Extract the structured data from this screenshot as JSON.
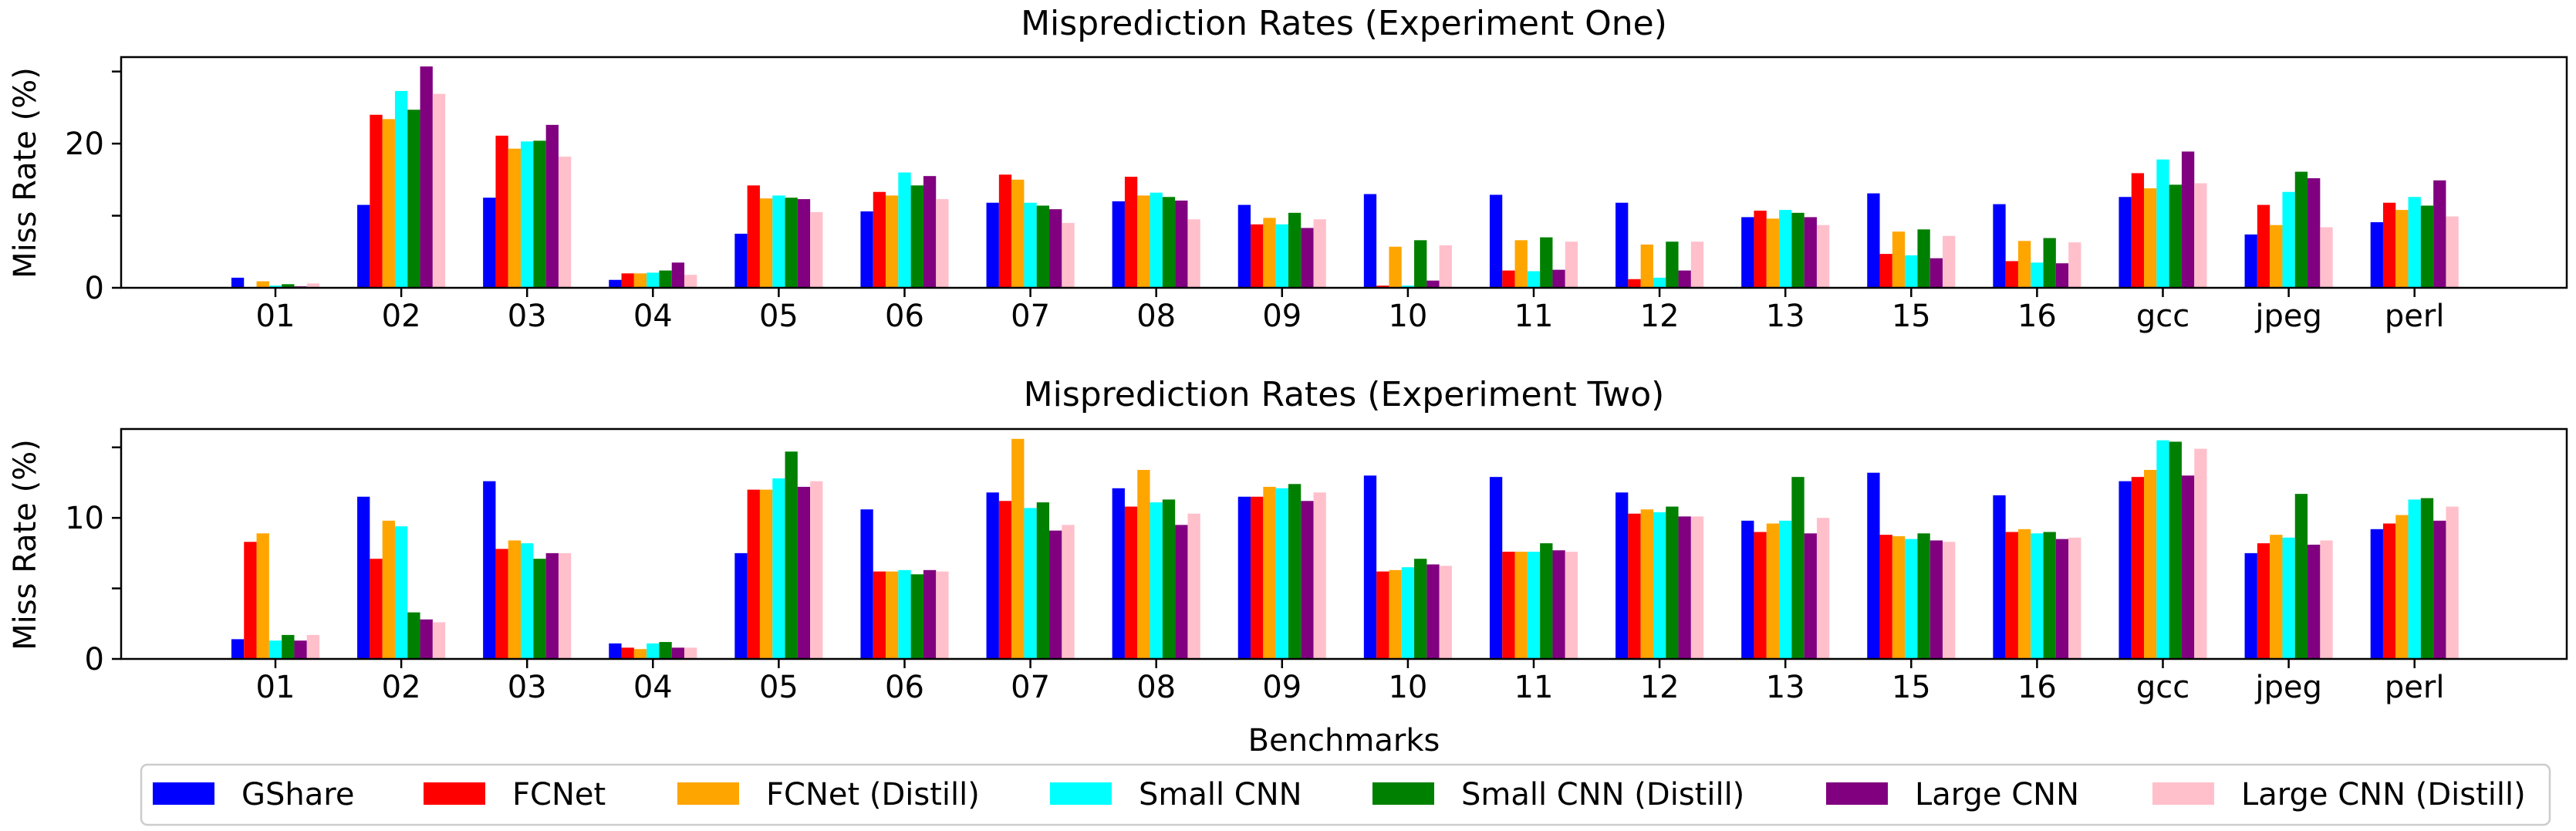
{
  "chart_data": [
    {
      "type": "bar",
      "title": "Misprediction Rates (Experiment One)",
      "xlabel": "",
      "ylabel": "Miss Rate (%)",
      "ylim": [
        0,
        32
      ],
      "yticks": [
        0,
        10,
        20,
        30
      ],
      "ytick_labels": [
        "0",
        "",
        "20",
        ""
      ],
      "categories": [
        "01",
        "02",
        "03",
        "04",
        "05",
        "06",
        "07",
        "08",
        "09",
        "10",
        "11",
        "12",
        "13",
        "15",
        "16",
        "gcc",
        "jpeg",
        "perl"
      ],
      "series": [
        {
          "name": "GShare",
          "color": "#0000ff",
          "values": [
            1.4,
            11.5,
            12.5,
            1.1,
            7.5,
            10.6,
            11.8,
            12.0,
            11.5,
            13.0,
            12.9,
            11.8,
            9.8,
            13.1,
            11.6,
            12.6,
            7.4,
            9.1
          ]
        },
        {
          "name": "FCNet",
          "color": "#ff0000",
          "values": [
            0,
            24.0,
            21.1,
            2.0,
            14.2,
            13.3,
            15.7,
            15.4,
            8.8,
            0.3,
            2.4,
            1.2,
            10.7,
            4.7,
            3.7,
            15.9,
            11.5,
            11.8
          ]
        },
        {
          "name": "FCNet (Distill)",
          "color": "#ffa500",
          "values": [
            0.9,
            23.4,
            19.3,
            2.0,
            12.4,
            12.8,
            15.0,
            12.8,
            9.7,
            5.7,
            6.6,
            6.0,
            9.6,
            7.8,
            6.5,
            13.8,
            8.7,
            10.8
          ]
        },
        {
          "name": "Small CNN",
          "color": "#00ffff",
          "values": [
            0.3,
            27.3,
            20.3,
            2.1,
            12.8,
            16.0,
            11.8,
            13.2,
            8.8,
            0.3,
            2.3,
            1.4,
            10.8,
            4.5,
            3.5,
            17.8,
            13.3,
            12.6
          ]
        },
        {
          "name": "Small CNN (Distill)",
          "color": "#008000",
          "values": [
            0.5,
            24.7,
            20.4,
            2.4,
            12.5,
            14.2,
            11.4,
            12.6,
            10.4,
            6.6,
            7.0,
            6.4,
            10.4,
            8.1,
            6.9,
            14.3,
            16.1,
            11.4
          ]
        },
        {
          "name": "Large CNN",
          "color": "#800080",
          "values": [
            0.2,
            30.7,
            22.6,
            3.5,
            12.3,
            15.5,
            10.9,
            12.1,
            8.3,
            1.0,
            2.5,
            2.4,
            9.8,
            4.1,
            3.4,
            18.9,
            15.2,
            14.9
          ]
        },
        {
          "name": "Large CNN (Distill)",
          "color": "#ffc0cb",
          "values": [
            0.6,
            26.9,
            18.2,
            1.8,
            10.5,
            12.3,
            9.0,
            9.5,
            9.5,
            5.9,
            6.4,
            6.4,
            8.7,
            7.2,
            6.3,
            14.5,
            8.4,
            9.9
          ]
        }
      ]
    },
    {
      "type": "bar",
      "title": "Misprediction Rates (Experiment Two)",
      "xlabel": "Benchmarks",
      "ylabel": "Miss Rate (%)",
      "ylim": [
        0,
        16.3
      ],
      "yticks": [
        0,
        5,
        10,
        15
      ],
      "ytick_labels": [
        "0",
        "",
        "10",
        ""
      ],
      "categories": [
        "01",
        "02",
        "03",
        "04",
        "05",
        "06",
        "07",
        "08",
        "09",
        "10",
        "11",
        "12",
        "13",
        "15",
        "16",
        "gcc",
        "jpeg",
        "perl"
      ],
      "series": [
        {
          "name": "GShare",
          "color": "#0000ff",
          "values": [
            1.4,
            11.5,
            12.6,
            1.1,
            7.5,
            10.6,
            11.8,
            12.1,
            11.5,
            13.0,
            12.9,
            11.8,
            9.8,
            13.2,
            11.6,
            12.6,
            7.5,
            9.2
          ]
        },
        {
          "name": "FCNet",
          "color": "#ff0000",
          "values": [
            8.3,
            7.1,
            7.8,
            0.8,
            12.0,
            6.2,
            11.2,
            10.8,
            11.5,
            6.2,
            7.6,
            10.3,
            9.0,
            8.8,
            9.0,
            12.9,
            8.2,
            9.6
          ]
        },
        {
          "name": "FCNet (Distill)",
          "color": "#ffa500",
          "values": [
            8.9,
            9.8,
            8.4,
            0.7,
            12.0,
            6.2,
            15.6,
            13.4,
            12.2,
            6.3,
            7.6,
            10.6,
            9.6,
            8.7,
            9.2,
            13.4,
            8.8,
            10.2
          ]
        },
        {
          "name": "Small CNN",
          "color": "#00ffff",
          "values": [
            1.3,
            9.4,
            8.2,
            1.1,
            12.8,
            6.3,
            10.7,
            11.1,
            12.1,
            6.5,
            7.6,
            10.4,
            9.8,
            8.5,
            8.9,
            15.5,
            8.6,
            11.3
          ]
        },
        {
          "name": "Small CNN (Distill)",
          "color": "#008000",
          "values": [
            1.7,
            3.3,
            7.1,
            1.2,
            14.7,
            6.0,
            11.1,
            11.3,
            12.4,
            7.1,
            8.2,
            10.8,
            12.9,
            8.9,
            9.0,
            15.4,
            11.7,
            11.4
          ]
        },
        {
          "name": "Large CNN",
          "color": "#800080",
          "values": [
            1.3,
            2.8,
            7.5,
            0.8,
            12.2,
            6.3,
            9.1,
            9.5,
            11.2,
            6.7,
            7.7,
            10.1,
            8.9,
            8.4,
            8.5,
            13.0,
            8.1,
            9.8
          ]
        },
        {
          "name": "Large CNN (Distill)",
          "color": "#ffc0cb",
          "values": [
            1.7,
            2.6,
            7.5,
            0.8,
            12.6,
            6.2,
            9.5,
            10.3,
            11.8,
            6.6,
            7.6,
            10.1,
            10.0,
            8.3,
            8.6,
            14.9,
            8.4,
            10.8
          ]
        }
      ]
    }
  ],
  "legend": {
    "placement": "bottom",
    "entries": [
      "GShare",
      "FCNet",
      "FCNet (Distill)",
      "Small CNN",
      "Small CNN (Distill)",
      "Large CNN",
      "Large CNN (Distill)"
    ]
  }
}
